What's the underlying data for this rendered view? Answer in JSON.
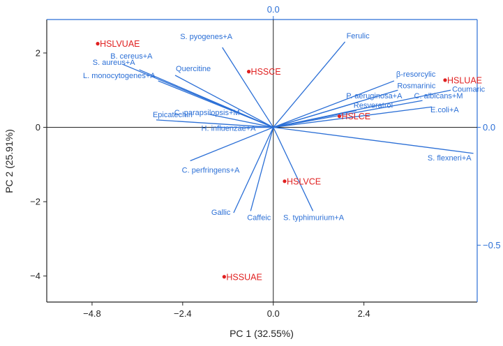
{
  "chart_data": {
    "type": "scatter",
    "subtype": "pca-biplot",
    "title": "",
    "xlabel": "PC 1 (32.55%)",
    "ylabel": "PC 2 (25.91%)",
    "xlim": [
      -6.0,
      5.4
    ],
    "ylim": [
      -4.7,
      2.9
    ],
    "x_ticks": [
      {
        "value": -4.8,
        "label": "−4.8"
      },
      {
        "value": -2.4,
        "label": "−2.4"
      },
      {
        "value": 0.0,
        "label": "0.0"
      },
      {
        "value": 2.4,
        "label": "2.4"
      }
    ],
    "y_ticks": [
      {
        "value": -4,
        "label": "−4"
      },
      {
        "value": -2,
        "label": "−2"
      },
      {
        "value": 0,
        "label": "0"
      },
      {
        "value": 2,
        "label": "2"
      }
    ],
    "loading_axis": {
      "color": "#2b6fd6",
      "top_ticks": [
        {
          "value": 0.0,
          "label": "0.0"
        }
      ],
      "right_ticks": [
        {
          "value": 0.0,
          "label": "0.0"
        },
        {
          "value": -0.5,
          "label": "−0.5"
        }
      ]
    },
    "grid": false,
    "scores": {
      "color": "#e02020",
      "points": [
        {
          "label": "HSLVUAE",
          "x": -4.65,
          "y": 2.25
        },
        {
          "label": "HSSCE",
          "x": -0.65,
          "y": 1.5
        },
        {
          "label": "HSLUAE",
          "x": 4.55,
          "y": 1.27
        },
        {
          "label": "HSLCE",
          "x": 1.75,
          "y": 0.3
        },
        {
          "label": "HSLVCE",
          "x": 0.3,
          "y": -1.45
        },
        {
          "label": "HSSUAE",
          "x": -1.3,
          "y": -4.02
        }
      ]
    },
    "loadings": {
      "color": "#2b6fd6",
      "vectors": [
        {
          "label": "S. pyogenes+A",
          "x": -1.35,
          "y": 2.15
        },
        {
          "label": "Ferulic",
          "x": 1.9,
          "y": 2.3
        },
        {
          "label": "B. cereus+A",
          "x": -4.0,
          "y": 1.7
        },
        {
          "label": "S. aureus+A",
          "x": -3.55,
          "y": 1.55
        },
        {
          "label": "L. monocytogenes+A",
          "x": -3.05,
          "y": 1.25
        },
        {
          "label": "Quercitine",
          "x": -2.6,
          "y": 1.4
        },
        {
          "label": "β-resorcylic",
          "x": 3.2,
          "y": 1.25
        },
        {
          "label": "Rosmarinic",
          "x": 3.3,
          "y": 1.0
        },
        {
          "label": "Coumaric",
          "x": 4.7,
          "y": 1.0
        },
        {
          "label": "P. aeruginosa+A",
          "x": 2.3,
          "y": 0.7
        },
        {
          "label": "C. albicans+M",
          "x": 3.95,
          "y": 0.72
        },
        {
          "label": "E.coli+A",
          "x": 4.2,
          "y": 0.55
        },
        {
          "label": "Resveratrol",
          "x": 2.2,
          "y": 0.45
        },
        {
          "label": "C. parapsilopsis+M",
          "x": -1.7,
          "y": 0.35
        },
        {
          "label": "Epicatechin",
          "x": -3.1,
          "y": 0.2
        },
        {
          "label": "H. influenzae+A",
          "x": -1.5,
          "y": 0.0
        },
        {
          "label": "S. flexneri+A",
          "x": 5.3,
          "y": -0.7
        },
        {
          "label": "C. perfringens+A",
          "x": -2.2,
          "y": -0.9
        },
        {
          "label": "Gallic",
          "x": -1.05,
          "y": -2.3
        },
        {
          "label": "Caffeic",
          "x": -0.6,
          "y": -2.25
        },
        {
          "label": "S. typhimurium+A",
          "x": 1.05,
          "y": -2.25
        }
      ]
    }
  }
}
